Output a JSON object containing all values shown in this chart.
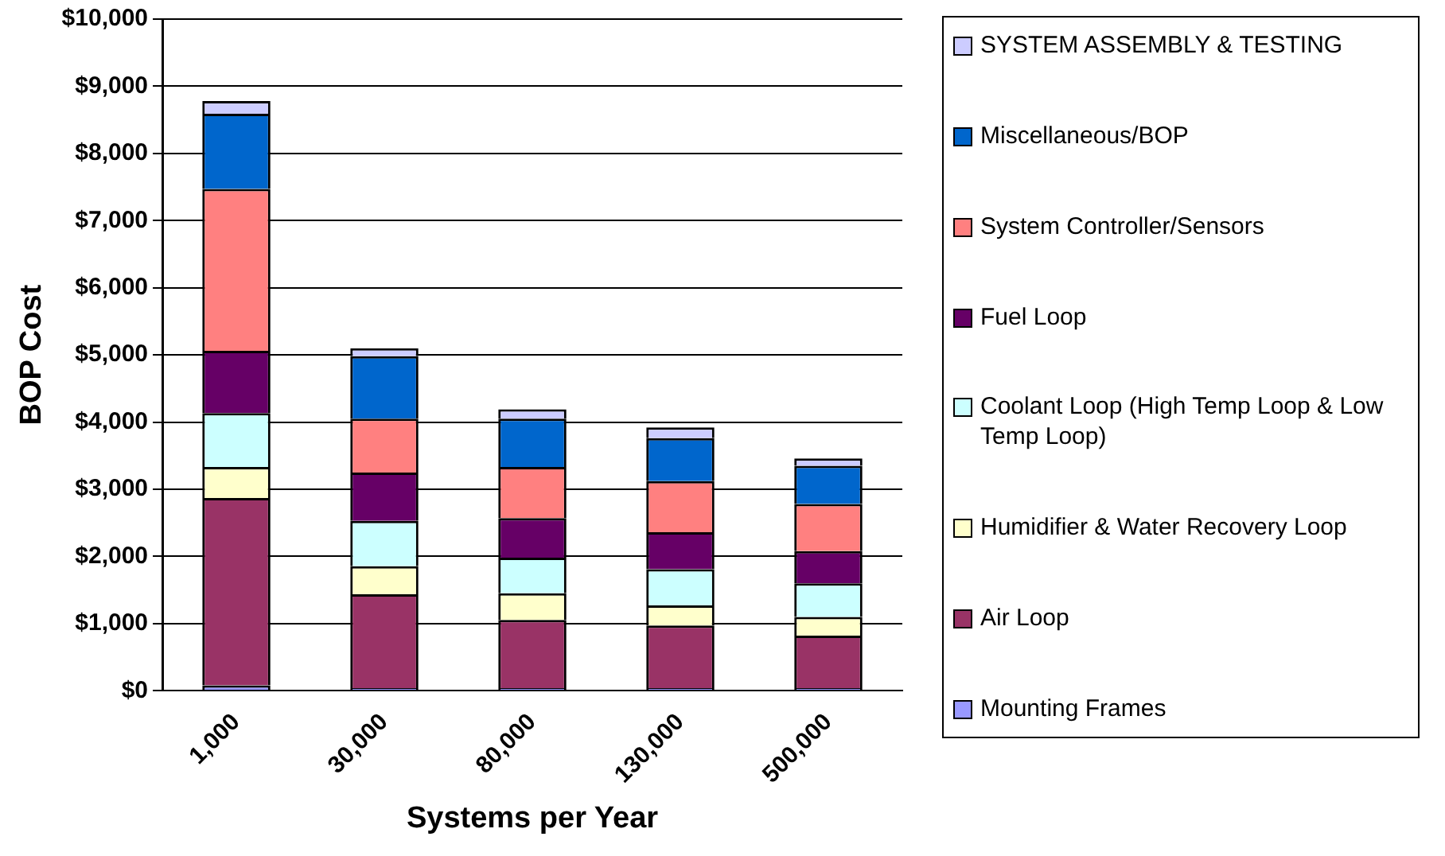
{
  "chart_data": {
    "type": "bar",
    "stacked": true,
    "xlabel": "Systems per Year",
    "ylabel": "BOP Cost",
    "categories": [
      "1,000",
      "30,000",
      "80,000",
      "130,000",
      "500,000"
    ],
    "ylim": [
      0,
      10000
    ],
    "yticks": [
      {
        "value": 0,
        "label": "$0"
      },
      {
        "value": 1000,
        "label": "$1,000"
      },
      {
        "value": 2000,
        "label": "$2,000"
      },
      {
        "value": 3000,
        "label": "$3,000"
      },
      {
        "value": 4000,
        "label": "$4,000"
      },
      {
        "value": 5000,
        "label": "$5,000"
      },
      {
        "value": 6000,
        "label": "$6,000"
      },
      {
        "value": 7000,
        "label": "$7,000"
      },
      {
        "value": 8000,
        "label": "$8,000"
      },
      {
        "value": 9000,
        "label": "$9,000"
      },
      {
        "value": 10000,
        "label": "$10,000"
      }
    ],
    "grid": "y",
    "legend": "right",
    "series": [
      {
        "name": "Mounting Frames",
        "color": "#9999ff",
        "values": [
          80,
          40,
          40,
          40,
          40
        ]
      },
      {
        "name": "Air Loop",
        "color": "#993366",
        "values": [
          2790,
          1395,
          1015,
          930,
          780
        ]
      },
      {
        "name": "Humidifier & Water Recovery Loop",
        "color": "#ffffcc",
        "values": [
          460,
          420,
          395,
          300,
          280
        ]
      },
      {
        "name": "Coolant Loop (High Temp Loop & Low Temp Loop)",
        "color": "#ccffff",
        "values": [
          805,
          675,
          530,
          540,
          500
        ]
      },
      {
        "name": "Fuel Loop",
        "color": "#660066",
        "values": [
          925,
          720,
          590,
          550,
          480
        ]
      },
      {
        "name": "System Controller/Sensors",
        "color": "#ff8080",
        "values": [
          2410,
          800,
          760,
          760,
          700
        ]
      },
      {
        "name": "Miscellaneous/BOP",
        "color": "#0066cc",
        "values": [
          1120,
          930,
          720,
          640,
          570
        ]
      },
      {
        "name": "SYSTEM ASSEMBLY & TESTING",
        "color": "#ccccff",
        "values": [
          190,
          120,
          140,
          160,
          110
        ]
      }
    ]
  }
}
